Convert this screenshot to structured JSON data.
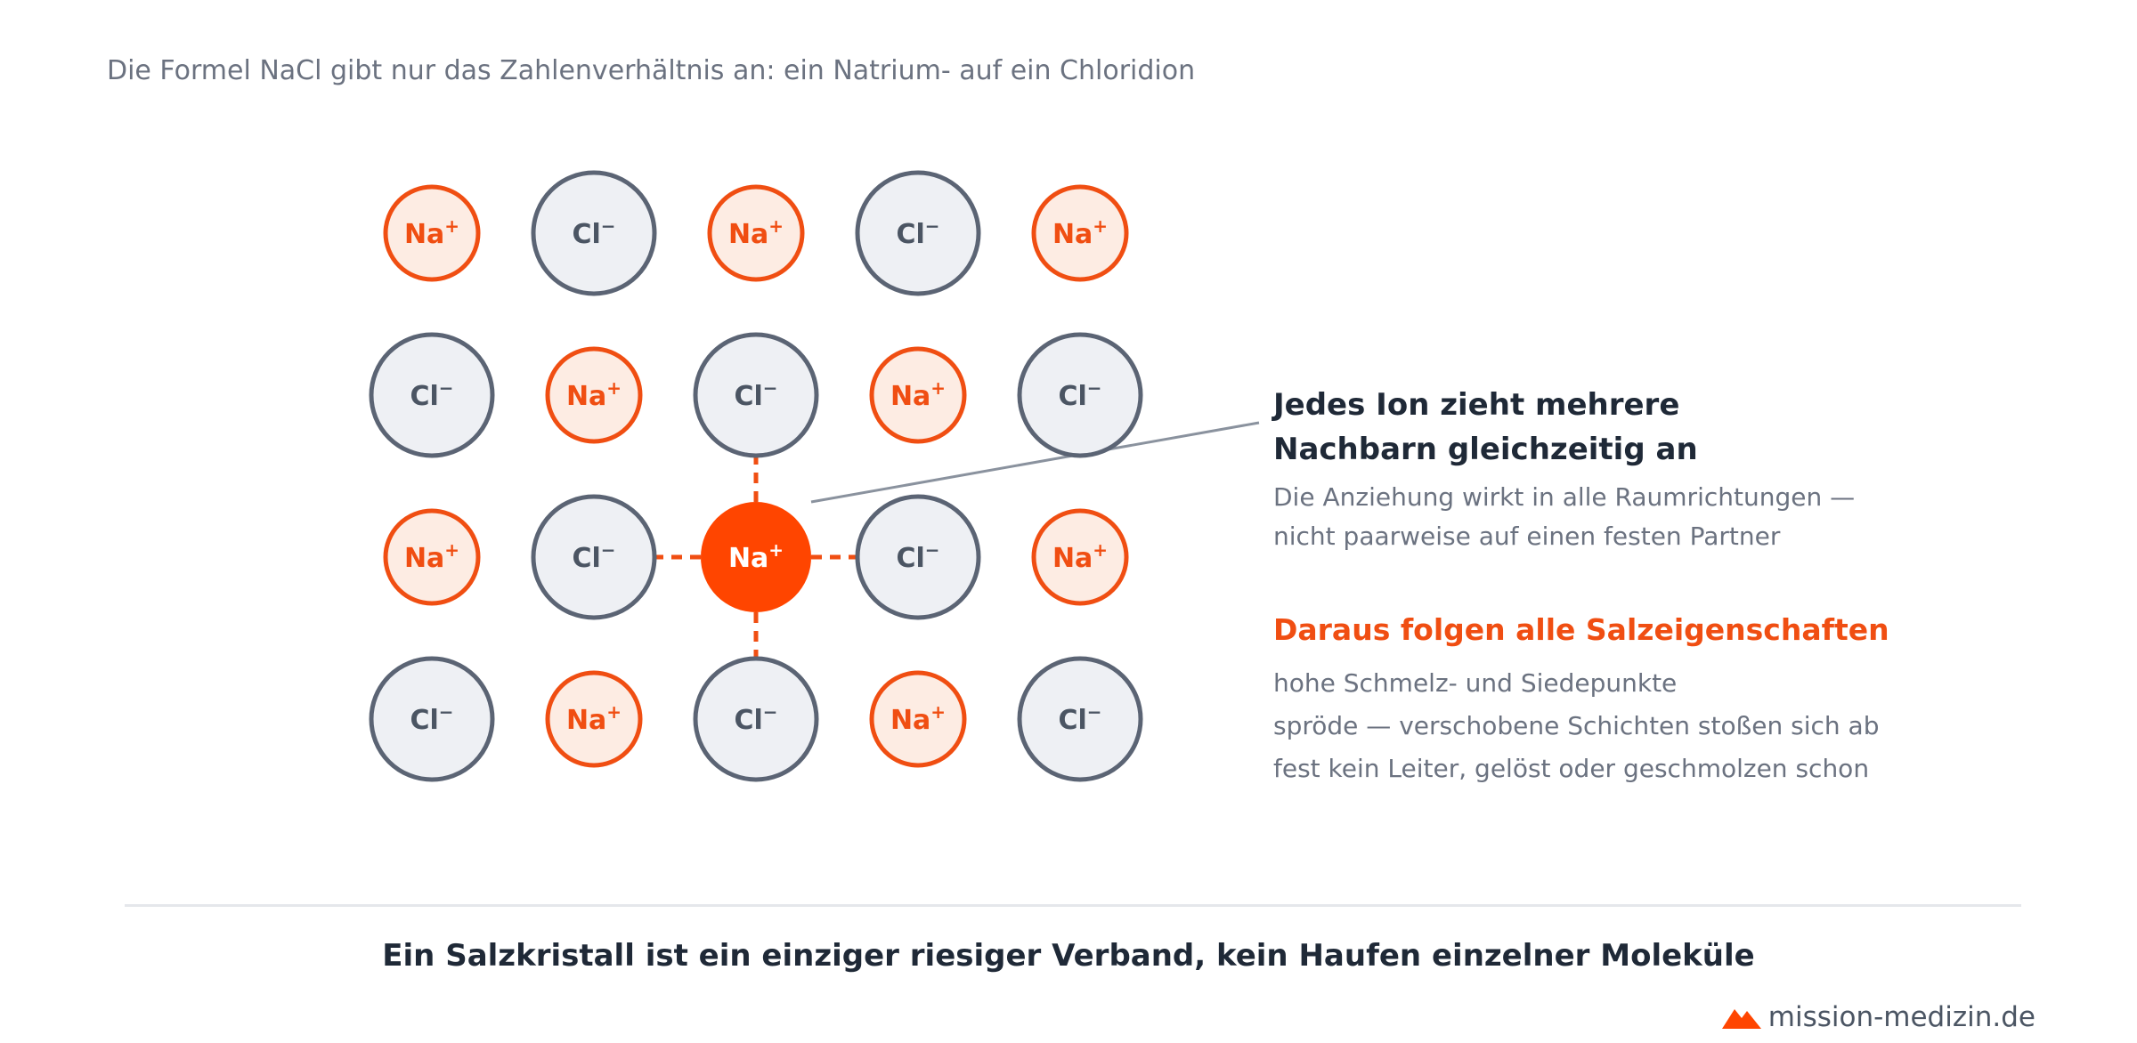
{
  "subtitle": "Die Formel NaCl gibt nur das Zahlenverhältnis an: ein Natrium- auf ein Chloridion",
  "lattice": {
    "cation": {
      "symbol": "Na",
      "charge": "+"
    },
    "anion": {
      "symbol": "Cl",
      "charge": "−"
    },
    "rows": 4,
    "cols": 5,
    "first_ion": "cation",
    "highlight": {
      "row": 2,
      "col": 2
    },
    "colors": {
      "cation_stroke": "#f04e12",
      "cation_fill": "#fdece3",
      "cation_text": "#f04e12",
      "anion_stroke": "#5b6474",
      "anion_fill": "#eef0f4",
      "anion_text": "#4b5563",
      "highlight_fill": "#ff4500",
      "highlight_text": "#ffffff",
      "bond": "#f04e12",
      "leader": "#8a929e"
    }
  },
  "callout": {
    "title_line1": "Jedes Ion zieht mehrere",
    "title_line2": "Nachbarn gleichzeitig an",
    "text_line1": "Die Anziehung wirkt in alle Raumrichtungen —",
    "text_line2": "nicht paarweise auf einen festen Partner"
  },
  "properties": {
    "title": "Daraus folgen alle Salzeigenschaften",
    "items": [
      "hohe Schmelz- und Siedepunkte",
      "spröde — verschobene Schichten stoßen sich ab",
      "fest kein Leiter, gelöst oder geschmolzen schon"
    ]
  },
  "conclusion": "Ein Salzkristall ist ein einziger riesiger Verband, kein Haufen einzelner Moleküle",
  "brand": {
    "name": "mission-medizin.de",
    "icon": "mountain-logo-icon",
    "color": "#ff4500"
  }
}
